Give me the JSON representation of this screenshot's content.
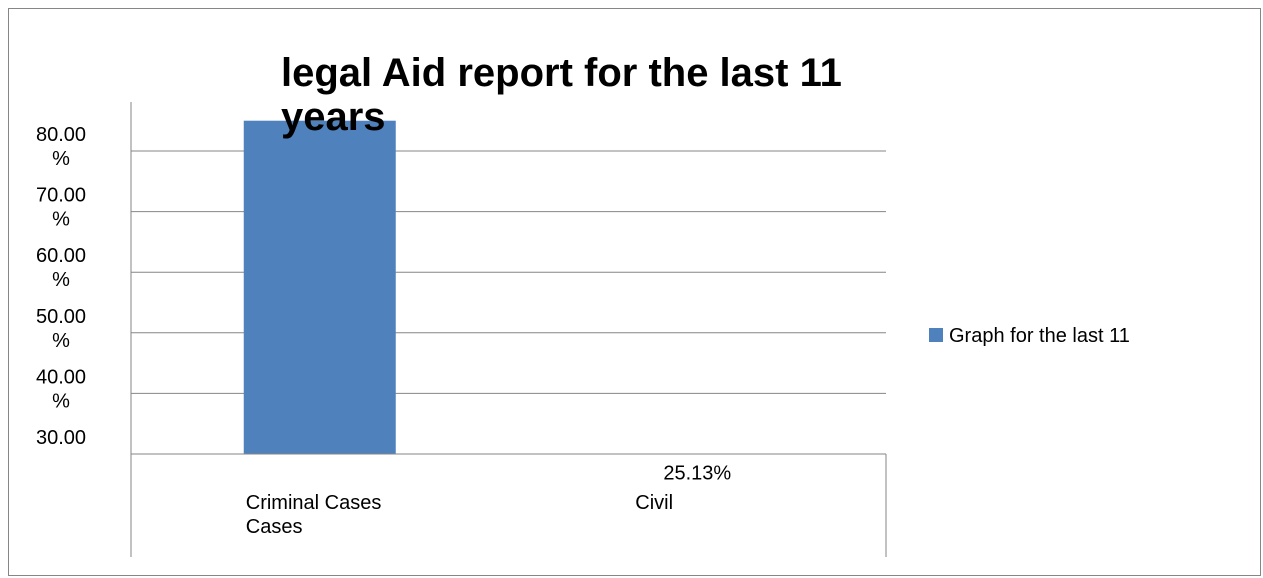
{
  "chart_data": {
    "type": "bar",
    "title_lines": [
      "legal Aid report for the last 11",
      "years"
    ],
    "categories": [
      {
        "lines": [
          "Criminal Cases",
          "Cases"
        ]
      },
      {
        "lines": [
          "Civil"
        ]
      }
    ],
    "series": [
      {
        "name": "Graph for the last 11",
        "color": "#4f81bd",
        "values": [
          85,
          25.13
        ],
        "data_labels": [
          null,
          "25.13%"
        ]
      }
    ],
    "y_ticks": [
      {
        "value": 80,
        "lines": [
          "80.00",
          "%"
        ]
      },
      {
        "value": 70,
        "lines": [
          "70.00",
          "%"
        ]
      },
      {
        "value": 60,
        "lines": [
          "60.00",
          "%"
        ]
      },
      {
        "value": 50,
        "lines": [
          "50.00",
          "%"
        ]
      },
      {
        "value": 40,
        "lines": [
          "40.00",
          "%"
        ]
      },
      {
        "value": 30,
        "lines": [
          "30.00"
        ]
      }
    ],
    "y_unit": "%",
    "grid": true,
    "legend_position": "right"
  }
}
